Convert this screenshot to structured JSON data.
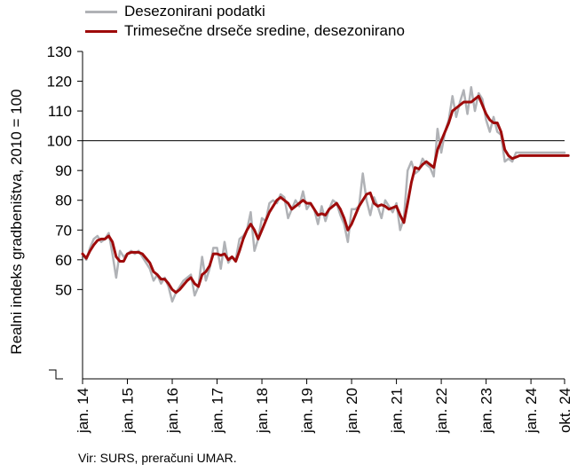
{
  "colors": {
    "raw": "#b0b2b6",
    "avg": "#9e0a0a",
    "axis": "#000000",
    "grid": "#cccccc",
    "ref": "#000000"
  },
  "legend": {
    "raw_label": "Desezonirani podatki",
    "avg_label": "Trimesečne drseče sredine, desezonirano"
  },
  "source": "Vir: SURS, preračuni UMAR.",
  "chart_data": {
    "type": "line",
    "title": "",
    "ylabel": "Realni indeks gradbeništva, 2010 = 100",
    "xlabel": "",
    "ylim": [
      20,
      130
    ],
    "yticks": [
      50,
      60,
      70,
      80,
      90,
      100,
      110,
      120,
      130
    ],
    "reference_line": 100,
    "grid": false,
    "legend_position": "top-left",
    "x_start": "jan. 14",
    "x_end": "okt. 24",
    "categories_labels": [
      "jan. 14",
      "jan. 15",
      "jan. 16",
      "jan. 17",
      "jan. 18",
      "jan. 19",
      "jan. 20",
      "jan. 21",
      "jan. 22",
      "jan. 23",
      "jan. 24",
      "okt. 24"
    ],
    "label_month_index": [
      0,
      12,
      24,
      36,
      48,
      60,
      72,
      84,
      96,
      108,
      120,
      129
    ],
    "series": [
      {
        "name": "Desezonirani podatki",
        "values": [
          62,
          60,
          64,
          67,
          68,
          66,
          67,
          69,
          62,
          54,
          63,
          61,
          62,
          63,
          62,
          63,
          61,
          59,
          57,
          53,
          55,
          52,
          54,
          51,
          46,
          49,
          51,
          53,
          54,
          55,
          48,
          51,
          61,
          53,
          57,
          64,
          64,
          57,
          66,
          59,
          61,
          60,
          67,
          68,
          70,
          76,
          63,
          67,
          74,
          73,
          79,
          80,
          79,
          82,
          81,
          74,
          77,
          80,
          78,
          83,
          77,
          79,
          77,
          72,
          78,
          73,
          77,
          80,
          79,
          75,
          72,
          66,
          77,
          77,
          78,
          89,
          80,
          75,
          81,
          78,
          74,
          80,
          78,
          76,
          79,
          70,
          74,
          90,
          93,
          89,
          90,
          94,
          92,
          91,
          88,
          104,
          96,
          103,
          107,
          115,
          108,
          113,
          117,
          109,
          118,
          110,
          116,
          114,
          107,
          103,
          108,
          103,
          102,
          93,
          94,
          93,
          96,
          96,
          96,
          96,
          96,
          96,
          96,
          96,
          96,
          96,
          96,
          96,
          96,
          96
        ],
        "color_key": "raw"
      },
      {
        "name": "Trimesečne drseče sredine, desezonirano",
        "values": [
          62,
          60.5,
          63,
          65,
          66.5,
          67,
          67,
          68,
          66,
          61,
          59.5,
          59.5,
          62,
          62.5,
          62.5,
          62.5,
          62,
          60.5,
          59,
          56,
          55,
          53.5,
          53.5,
          52,
          50,
          49,
          50,
          51.5,
          53,
          54,
          52,
          51,
          55,
          56,
          58,
          62,
          62,
          61.5,
          62,
          60,
          61,
          59.5,
          63,
          67,
          70,
          72,
          70,
          67,
          70,
          73,
          76,
          78,
          80,
          81,
          80,
          79,
          77,
          78,
          79,
          80,
          79,
          79,
          77,
          75,
          75.5,
          75,
          77,
          78,
          79,
          77,
          74,
          70,
          72,
          75,
          78,
          80,
          82,
          82.5,
          79,
          78,
          78.5,
          78,
          77,
          77.5,
          78,
          75,
          72.5,
          79,
          86,
          91,
          90.5,
          92,
          93,
          92,
          91,
          97,
          100,
          103,
          106,
          110,
          111,
          112,
          113,
          113,
          113,
          114,
          115,
          112,
          109,
          107,
          106,
          106,
          103,
          97,
          95,
          94,
          94.5,
          95,
          95,
          95,
          95,
          95,
          95,
          95,
          95,
          95,
          95,
          95,
          95,
          95,
          95
        ],
        "color_key": "avg"
      }
    ]
  }
}
